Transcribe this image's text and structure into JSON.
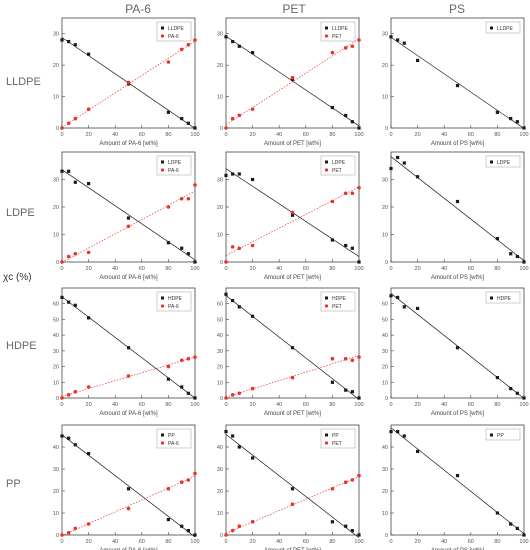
{
  "column_titles": [
    "PA-6",
    "PET",
    "PS"
  ],
  "row_titles": [
    "LLDPE",
    "LDPE",
    "HDPE",
    "PP"
  ],
  "y_axis_label": "χc (%)",
  "colors": {
    "matrix": "#1a1a1a",
    "dispersed": "#e8322a"
  },
  "chart_data": [
    {
      "type": "scatter",
      "row": "LLDPE",
      "col": "PA-6",
      "xlabel": "Amount of PA-6 [wt%]",
      "ylim": [
        0,
        35
      ],
      "yticks": [
        0,
        10,
        20,
        30
      ],
      "xlim": [
        0,
        100
      ],
      "xticks": [
        0,
        20,
        40,
        60,
        80,
        100
      ],
      "legend": "top-right",
      "series": [
        {
          "name": "LLDPE",
          "kind": "matrix",
          "x": [
            0,
            5,
            10,
            20,
            50,
            80,
            90,
            95,
            100
          ],
          "y": [
            28,
            27.5,
            26.5,
            23.5,
            14,
            5,
            3,
            1.5,
            0
          ]
        },
        {
          "name": "PA-6",
          "kind": "dispersed",
          "x": [
            0,
            5,
            10,
            20,
            50,
            80,
            90,
            95,
            100
          ],
          "y": [
            0,
            1.5,
            3,
            6,
            14.5,
            21,
            25,
            26.5,
            28
          ]
        }
      ]
    },
    {
      "type": "scatter",
      "row": "LLDPE",
      "col": "PET",
      "xlabel": "Amount of PET [wt%]",
      "ylim": [
        0,
        35
      ],
      "yticks": [
        0,
        10,
        20,
        30
      ],
      "xlim": [
        0,
        100
      ],
      "xticks": [
        0,
        20,
        40,
        60,
        80,
        100
      ],
      "legend": "top-right",
      "series": [
        {
          "name": "LLDPE",
          "kind": "matrix",
          "x": [
            0,
            5,
            10,
            20,
            50,
            80,
            90,
            95,
            100
          ],
          "y": [
            29,
            27.5,
            26,
            24,
            15.5,
            6.5,
            4,
            2,
            0
          ]
        },
        {
          "name": "PET",
          "kind": "dispersed",
          "x": [
            0,
            5,
            10,
            20,
            50,
            80,
            90,
            95,
            100
          ],
          "y": [
            0,
            3,
            4,
            6,
            16,
            24,
            25.5,
            26,
            28
          ]
        }
      ]
    },
    {
      "type": "scatter",
      "row": "LLDPE",
      "col": "PS",
      "xlabel": "Amount of PS [wt%]",
      "ylim": [
        0,
        35
      ],
      "yticks": [
        0,
        10,
        20,
        30
      ],
      "xlim": [
        0,
        100
      ],
      "xticks": [
        0,
        20,
        40,
        60,
        80,
        100
      ],
      "legend": "top-right",
      "series": [
        {
          "name": "LLDPE",
          "kind": "matrix",
          "x": [
            0,
            5,
            10,
            20,
            50,
            80,
            90,
            95,
            100
          ],
          "y": [
            29,
            28,
            27,
            21.5,
            13.5,
            5,
            3,
            2,
            0
          ]
        }
      ]
    },
    {
      "type": "scatter",
      "row": "LDPE",
      "col": "PA-6",
      "xlabel": "Amount of PA-6 [wt%]",
      "ylim": [
        0,
        40
      ],
      "yticks": [
        0,
        10,
        20,
        30
      ],
      "xlim": [
        0,
        100
      ],
      "xticks": [
        0,
        20,
        40,
        60,
        80,
        100
      ],
      "legend": "top-right",
      "series": [
        {
          "name": "LDPE",
          "kind": "matrix",
          "x": [
            0,
            5,
            10,
            20,
            50,
            80,
            90,
            95,
            100
          ],
          "y": [
            33,
            33,
            29,
            28.5,
            16,
            7,
            5,
            3,
            0
          ]
        },
        {
          "name": "PA-6",
          "kind": "dispersed",
          "x": [
            0,
            5,
            10,
            20,
            50,
            80,
            90,
            95,
            100
          ],
          "y": [
            0,
            2,
            3,
            3.5,
            13,
            20,
            23,
            23,
            28
          ]
        }
      ]
    },
    {
      "type": "scatter",
      "row": "LDPE",
      "col": "PET",
      "xlabel": "Amount of PET [wt%]",
      "ylim": [
        0,
        40
      ],
      "yticks": [
        0,
        10,
        20,
        30
      ],
      "xlim": [
        0,
        100
      ],
      "xticks": [
        0,
        20,
        40,
        60,
        80,
        100
      ],
      "legend": "top-right",
      "series": [
        {
          "name": "LDPE",
          "kind": "matrix",
          "x": [
            0,
            5,
            10,
            20,
            50,
            80,
            90,
            95,
            100
          ],
          "y": [
            31.5,
            32,
            32,
            30,
            17,
            8,
            6,
            5,
            0
          ]
        },
        {
          "name": "PET",
          "kind": "dispersed",
          "x": [
            0,
            5,
            10,
            20,
            50,
            80,
            90,
            95,
            100
          ],
          "y": [
            0,
            5.5,
            5,
            6,
            18,
            22,
            25,
            25,
            27
          ]
        }
      ]
    },
    {
      "type": "scatter",
      "row": "LDPE",
      "col": "PS",
      "xlabel": "Amount of PS [wt%]",
      "ylim": [
        0,
        40
      ],
      "yticks": [
        0,
        10,
        20,
        30
      ],
      "xlim": [
        0,
        100
      ],
      "xticks": [
        0,
        20,
        40,
        60,
        80,
        100
      ],
      "legend": "top-right",
      "series": [
        {
          "name": "LDPE",
          "kind": "matrix",
          "x": [
            0,
            5,
            10,
            20,
            50,
            80,
            90,
            95,
            100
          ],
          "y": [
            34,
            38,
            36,
            31,
            22,
            8.5,
            3,
            2,
            0
          ]
        }
      ]
    },
    {
      "type": "scatter",
      "row": "HDPE",
      "col": "PA-6",
      "xlabel": "Amount of PA-6 [wt%]",
      "ylim": [
        0,
        70
      ],
      "yticks": [
        0,
        10,
        20,
        30,
        40,
        50,
        60
      ],
      "xlim": [
        0,
        100
      ],
      "xticks": [
        0,
        20,
        40,
        60,
        80,
        100
      ],
      "legend": "top-right",
      "series": [
        {
          "name": "HDPE",
          "kind": "matrix",
          "x": [
            0,
            5,
            10,
            20,
            50,
            80,
            90,
            95,
            100
          ],
          "y": [
            64,
            61,
            59,
            51,
            32,
            12,
            7,
            3,
            0
          ]
        },
        {
          "name": "PA-6",
          "kind": "dispersed",
          "x": [
            0,
            5,
            10,
            20,
            50,
            80,
            90,
            95,
            100
          ],
          "y": [
            0,
            2,
            4,
            7,
            14,
            20,
            24,
            25,
            26
          ]
        }
      ]
    },
    {
      "type": "scatter",
      "row": "HDPE",
      "col": "PET",
      "xlabel": "Amount of PET [wt%]",
      "ylim": [
        0,
        70
      ],
      "yticks": [
        0,
        10,
        20,
        30,
        40,
        50,
        60
      ],
      "xlim": [
        0,
        100
      ],
      "xticks": [
        0,
        20,
        40,
        60,
        80,
        100
      ],
      "legend": "top-right",
      "series": [
        {
          "name": "HDPE",
          "kind": "matrix",
          "x": [
            0,
            5,
            10,
            20,
            50,
            80,
            90,
            95,
            100
          ],
          "y": [
            66,
            62,
            58,
            52,
            32,
            10,
            5,
            4,
            0
          ]
        },
        {
          "name": "PET",
          "kind": "dispersed",
          "x": [
            0,
            5,
            10,
            20,
            50,
            80,
            90,
            95,
            100
          ],
          "y": [
            0,
            2,
            3,
            6,
            13,
            25,
            25,
            24,
            26
          ]
        }
      ]
    },
    {
      "type": "scatter",
      "row": "HDPE",
      "col": "PS",
      "xlabel": "Amount of PS [wt%]",
      "ylim": [
        0,
        70
      ],
      "yticks": [
        0,
        10,
        20,
        30,
        40,
        50,
        60
      ],
      "xlim": [
        0,
        100
      ],
      "xticks": [
        0,
        20,
        40,
        60,
        80,
        100
      ],
      "legend": "top-right",
      "series": [
        {
          "name": "HDPE",
          "kind": "matrix",
          "x": [
            0,
            5,
            10,
            20,
            50,
            80,
            90,
            95,
            100
          ],
          "y": [
            65,
            64,
            58,
            57,
            32,
            13,
            6,
            3,
            0
          ]
        }
      ]
    },
    {
      "type": "scatter",
      "row": "PP",
      "col": "PA-6",
      "xlabel": "Amount of PA-6 [wt%]",
      "ylim": [
        0,
        50
      ],
      "yticks": [
        0,
        10,
        20,
        30,
        40
      ],
      "xlim": [
        0,
        100
      ],
      "xticks": [
        0,
        20,
        40,
        60,
        80,
        100
      ],
      "legend": "top-right",
      "series": [
        {
          "name": "PP",
          "kind": "matrix",
          "x": [
            0,
            5,
            10,
            20,
            50,
            80,
            90,
            95,
            100
          ],
          "y": [
            45,
            44,
            41,
            37,
            21,
            7,
            4,
            2,
            0
          ]
        },
        {
          "name": "PA-6",
          "kind": "dispersed",
          "x": [
            0,
            5,
            10,
            20,
            50,
            80,
            90,
            95,
            100
          ],
          "y": [
            0,
            1,
            3,
            5,
            12,
            21,
            24,
            25,
            28
          ]
        }
      ]
    },
    {
      "type": "scatter",
      "row": "PP",
      "col": "PET",
      "xlabel": "Amount of PET [wt%]",
      "ylim": [
        0,
        50
      ],
      "yticks": [
        0,
        10,
        20,
        30,
        40
      ],
      "xlim": [
        0,
        100
      ],
      "xticks": [
        0,
        20,
        40,
        60,
        80,
        100
      ],
      "legend": "top-right",
      "series": [
        {
          "name": "PP",
          "kind": "matrix",
          "x": [
            0,
            5,
            10,
            20,
            50,
            80,
            90,
            95,
            100
          ],
          "y": [
            47,
            45,
            40,
            35,
            21,
            6,
            4,
            2,
            0
          ]
        },
        {
          "name": "PET",
          "kind": "dispersed",
          "x": [
            0,
            5,
            10,
            20,
            50,
            80,
            90,
            95,
            100
          ],
          "y": [
            0,
            2,
            4,
            6,
            14,
            21,
            24,
            25,
            27
          ]
        }
      ]
    },
    {
      "type": "scatter",
      "row": "PP",
      "col": "PS",
      "xlabel": "Amount of PS [wt%]",
      "ylim": [
        0,
        50
      ],
      "yticks": [
        0,
        10,
        20,
        30,
        40
      ],
      "xlim": [
        0,
        100
      ],
      "xticks": [
        0,
        20,
        40,
        60,
        80,
        100
      ],
      "legend": "top-right",
      "series": [
        {
          "name": "PP",
          "kind": "matrix",
          "x": [
            0,
            5,
            10,
            20,
            50,
            80,
            90,
            95,
            100
          ],
          "y": [
            47,
            47,
            45,
            38,
            27,
            10,
            5,
            3,
            0
          ]
        }
      ]
    }
  ]
}
